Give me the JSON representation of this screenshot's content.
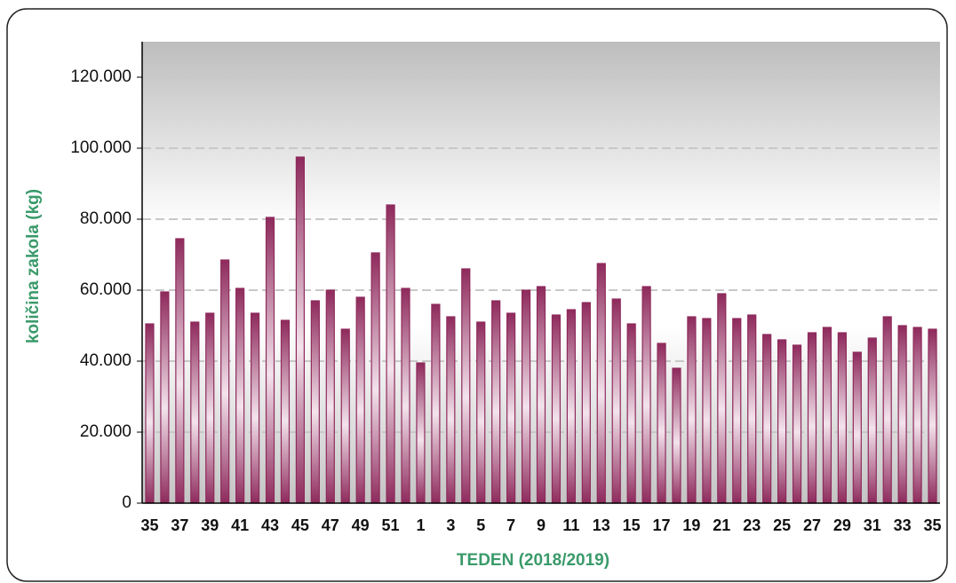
{
  "chart_data": {
    "type": "bar",
    "xlabel": "TEDEN  (2018/2019)",
    "ylabel": "količina zakola (kg)",
    "categories": [
      "35",
      null,
      "37",
      null,
      "39",
      null,
      "41",
      null,
      "43",
      null,
      "45",
      null,
      "47",
      null,
      "49",
      null,
      "51",
      null,
      "1",
      null,
      "3",
      null,
      "5",
      null,
      "7",
      null,
      "9",
      null,
      "11",
      null,
      "13",
      null,
      "15",
      null,
      "17",
      null,
      "19",
      null,
      "21",
      null,
      "23",
      null,
      "25",
      null,
      "27",
      null,
      "29",
      null,
      "31",
      null,
      "33",
      null,
      "35"
    ],
    "values": [
      50500,
      59500,
      74500,
      51000,
      53500,
      68500,
      60500,
      53500,
      80500,
      51500,
      97500,
      57000,
      60000,
      49000,
      58000,
      70500,
      84000,
      60500,
      39500,
      56000,
      52500,
      66000,
      51000,
      57000,
      53500,
      60000,
      61000,
      53000,
      54500,
      56500,
      67500,
      57500,
      50500,
      61000,
      45000,
      38000,
      52500,
      52000,
      59000,
      52000,
      53000,
      47500,
      46000,
      44500,
      48000,
      49500,
      48000,
      42500,
      46500,
      52500,
      50000,
      49500,
      49000
    ],
    "color": "#8e2a5c",
    "ylim": [
      0,
      130000
    ],
    "yticks": [
      0,
      {
        "value": 20000,
        "label": "20.000"
      },
      {
        "value": 40000,
        "label": "40.000"
      },
      {
        "value": 60000,
        "label": "60.000"
      },
      {
        "value": 80000,
        "label": "80.000"
      },
      {
        "value": 100000,
        "label": "100.000"
      },
      {
        "value": 120000,
        "label": "120.000"
      }
    ],
    "grid": true
  }
}
